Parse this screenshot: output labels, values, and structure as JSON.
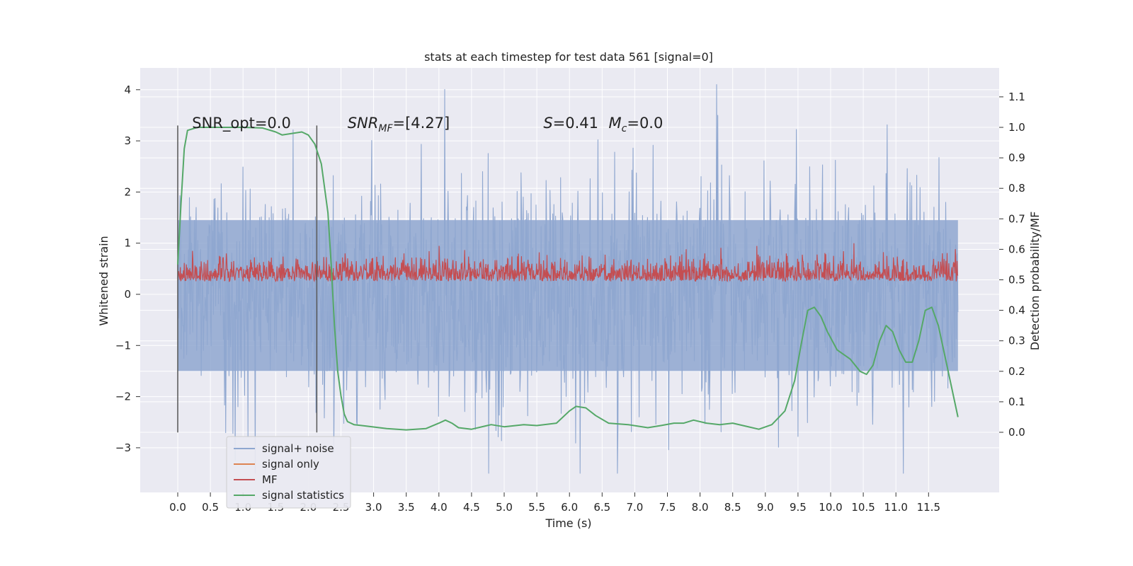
{
  "chart_data": {
    "type": "line",
    "title": "stats at each timestep for test data 561 [signal=0]",
    "xlabel": "Time (s)",
    "ylabel_left": "Whitened strain",
    "ylabel_right": "Detection probability/MF",
    "xlim": [
      -0.6,
      12.6
    ],
    "ylim_left": [
      -3.9,
      4.45
    ],
    "ylim_right": [
      -0.2,
      1.2
    ],
    "x_ticks": [
      "0.0",
      "0.5",
      "1.0",
      "1.5",
      "2.0",
      "2.5",
      "3.0",
      "3.5",
      "4.0",
      "4.5",
      "5.0",
      "5.5",
      "6.0",
      "6.5",
      "7.0",
      "7.5",
      "8.0",
      "8.5",
      "9.0",
      "9.5",
      "10.0",
      "10.5",
      "11.0",
      "11.5"
    ],
    "y_left_ticks": [
      "4",
      "3",
      "2",
      "1",
      "0",
      "−1",
      "−2",
      "−3"
    ],
    "y_right_ticks": [
      "1.1",
      "1.0",
      "0.9",
      "0.8",
      "0.7",
      "0.6",
      "0.5",
      "0.4",
      "0.3",
      "0.2",
      "0.1",
      "0.0"
    ],
    "grid": true,
    "legend_position": "lower-left",
    "colors": {
      "background": "#eaeaf2",
      "signal_noise": "#8fa7d0",
      "signal_only": "#dd8452",
      "mf": "#c44e52",
      "signal_statistics": "#55a868",
      "marker_lines": "#555555"
    },
    "series": [
      {
        "name": "signal+ noise",
        "kind": "noise",
        "axis": "left",
        "x_range": [
          0,
          11.95
        ],
        "envelope_range": [
          -3.5,
          4.1
        ]
      },
      {
        "name": "signal only",
        "kind": "flat",
        "axis": "left",
        "values": []
      },
      {
        "name": "MF",
        "kind": "noise",
        "axis": "right",
        "x_range": [
          0,
          11.95
        ],
        "envelope_range": [
          0.495,
          0.62
        ]
      },
      {
        "name": "signal statistics",
        "kind": "line",
        "axis": "right",
        "x": [
          0.0,
          0.05,
          0.1,
          0.15,
          0.3,
          0.6,
          1.0,
          1.3,
          1.5,
          1.6,
          1.75,
          1.9,
          2.0,
          2.1,
          2.2,
          2.3,
          2.35,
          2.4,
          2.45,
          2.5,
          2.55,
          2.6,
          2.7,
          2.9,
          3.2,
          3.5,
          3.8,
          4.0,
          4.1,
          4.2,
          4.3,
          4.5,
          4.7,
          4.8,
          5.0,
          5.3,
          5.5,
          5.8,
          6.0,
          6.1,
          6.25,
          6.4,
          6.6,
          6.9,
          7.2,
          7.4,
          7.6,
          7.75,
          7.9,
          8.1,
          8.3,
          8.5,
          8.7,
          8.9,
          9.1,
          9.3,
          9.45,
          9.55,
          9.65,
          9.75,
          9.85,
          9.95,
          10.1,
          10.3,
          10.45,
          10.55,
          10.65,
          10.75,
          10.85,
          10.95,
          11.05,
          11.15,
          11.25,
          11.35,
          11.45,
          11.55,
          11.65,
          11.8,
          11.95
        ],
        "values": [
          0.55,
          0.75,
          0.93,
          0.99,
          1.0,
          1.0,
          1.0,
          0.998,
          0.985,
          0.975,
          0.98,
          0.985,
          0.975,
          0.945,
          0.88,
          0.72,
          0.55,
          0.35,
          0.2,
          0.12,
          0.06,
          0.035,
          0.025,
          0.02,
          0.012,
          0.008,
          0.012,
          0.03,
          0.04,
          0.03,
          0.015,
          0.01,
          0.02,
          0.025,
          0.018,
          0.025,
          0.022,
          0.03,
          0.07,
          0.085,
          0.08,
          0.055,
          0.03,
          0.025,
          0.015,
          0.022,
          0.03,
          0.03,
          0.04,
          0.03,
          0.025,
          0.03,
          0.02,
          0.01,
          0.025,
          0.07,
          0.17,
          0.29,
          0.4,
          0.41,
          0.38,
          0.33,
          0.27,
          0.24,
          0.2,
          0.19,
          0.22,
          0.3,
          0.35,
          0.33,
          0.27,
          0.23,
          0.23,
          0.3,
          0.4,
          0.41,
          0.35,
          0.2,
          0.05
        ]
      }
    ],
    "vertical_lines": [
      {
        "x": 0.0,
        "from_y": -2.7,
        "to_y": 3.3
      },
      {
        "x": 2.13,
        "from_y": -2.7,
        "to_y": 3.3
      }
    ],
    "annotations": [
      {
        "text": "SNR_opt=0.0",
        "x": 0.22,
        "y": 3.25
      },
      {
        "text": "SNR",
        "sub": "MF",
        "suffix": "=[4.27]",
        "italic": true,
        "x": 2.6,
        "y": 3.25
      },
      {
        "text": "S",
        "suffix": "=0.41",
        "italic": true,
        "x": 5.6,
        "y": 3.25
      },
      {
        "text": "M",
        "sub": "c",
        "suffix": "=0.0",
        "italic": true,
        "x": 6.6,
        "y": 3.25
      }
    ]
  }
}
